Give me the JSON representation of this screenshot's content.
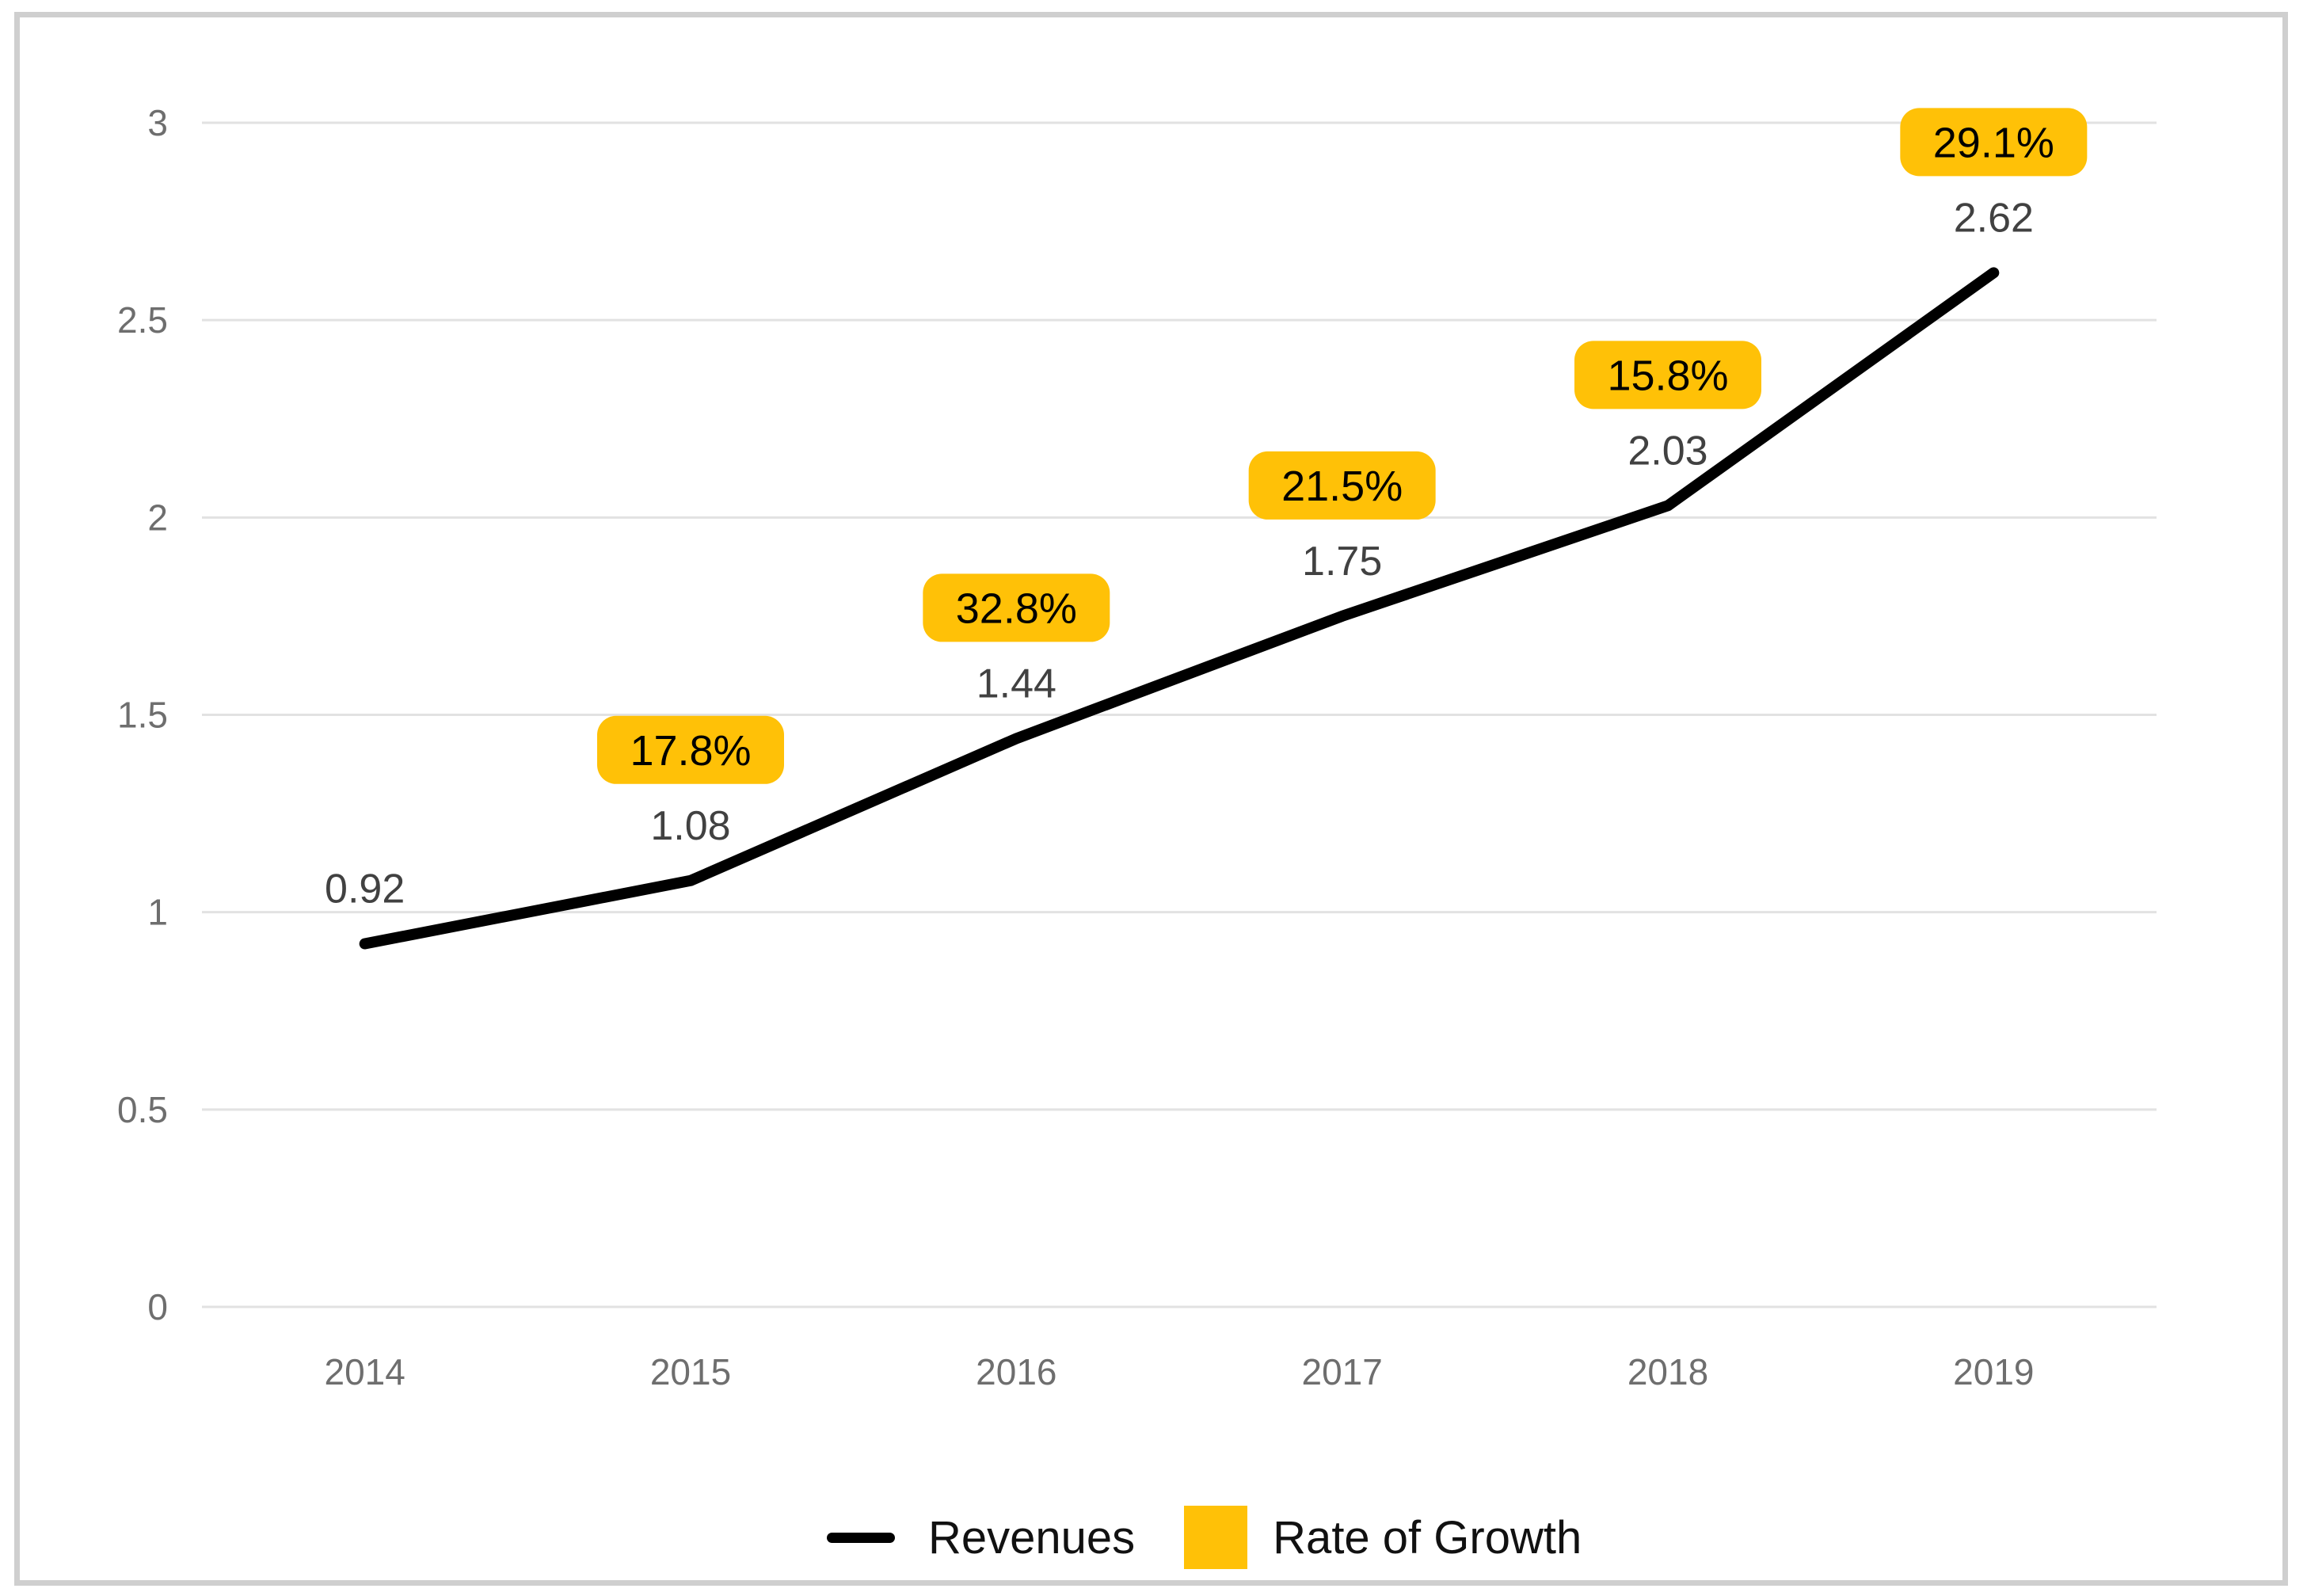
{
  "chart_data": {
    "type": "line",
    "title": "",
    "x": [
      "2014",
      "2015",
      "2016",
      "2017",
      "2018",
      "2019"
    ],
    "series": [
      {
        "name": "Revenues",
        "kind": "line",
        "color": "#000000",
        "values": [
          0.92,
          1.08,
          1.44,
          1.75,
          2.03,
          2.62
        ],
        "point_labels": [
          "0.92",
          "1.08",
          "1.44",
          "1.75",
          "2.03",
          "2.62"
        ]
      },
      {
        "name": "Rate of Growth",
        "kind": "badge-labels",
        "color": "#ffc107",
        "values_pct": [
          null,
          17.8,
          32.8,
          21.5,
          15.8,
          29.1
        ],
        "badge_labels": [
          "",
          "17.8%",
          "32.8%",
          "21.5%",
          "15.8%",
          "29.1%"
        ]
      }
    ],
    "ylim": [
      0,
      3
    ],
    "ytick_values": [
      0,
      0.5,
      1,
      1.5,
      2,
      2.5,
      3
    ],
    "ytick_labels": [
      "0",
      "0.5",
      "1",
      "1.5",
      "2",
      "2.5",
      "3"
    ],
    "grid": true,
    "legend_position": "bottom-center",
    "colors": {
      "line": "#000000",
      "badge_fill": "#ffc107",
      "badge_text": "#000000",
      "gridline": "#e2e2e2",
      "tick_label": "#6e6e6e",
      "value_label": "#414141",
      "legend_text": "#111111",
      "frame_border": "#cfcfcf",
      "background": "#ffffff"
    }
  }
}
